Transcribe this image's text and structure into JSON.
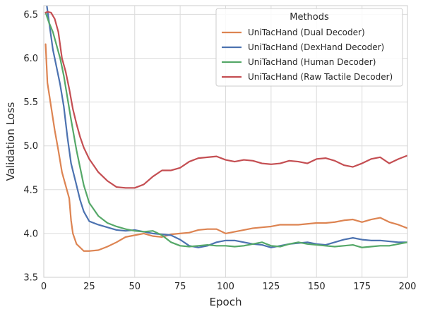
{
  "chart_data": {
    "type": "line",
    "xlabel": "Epoch",
    "ylabel": "Validation Loss",
    "xlim": [
      0,
      200
    ],
    "ylim": [
      3.5,
      6.6
    ],
    "xticks": [
      0,
      25,
      50,
      75,
      100,
      125,
      150,
      175,
      200
    ],
    "yticks": [
      3.5,
      4.0,
      4.5,
      5.0,
      5.5,
      6.0,
      6.5
    ],
    "ytick_labels": [
      "3.5",
      "4.0",
      "4.5",
      "5.0",
      "5.5",
      "6.0",
      "6.5"
    ],
    "grid": true,
    "legend": {
      "title": "Methods",
      "position": "top-right"
    },
    "series": [
      {
        "name": "UniTacHand (Dual Decoder)",
        "color": "#dd8452",
        "points": [
          [
            1,
            6.16
          ],
          [
            2,
            5.72
          ],
          [
            4,
            5.45
          ],
          [
            6,
            5.18
          ],
          [
            8,
            4.95
          ],
          [
            10,
            4.7
          ],
          [
            12,
            4.55
          ],
          [
            14,
            4.4
          ],
          [
            15,
            4.15
          ],
          [
            16,
            4.0
          ],
          [
            18,
            3.88
          ],
          [
            20,
            3.84
          ],
          [
            22,
            3.8
          ],
          [
            25,
            3.8
          ],
          [
            30,
            3.81
          ],
          [
            35,
            3.85
          ],
          [
            40,
            3.9
          ],
          [
            45,
            3.96
          ],
          [
            50,
            3.98
          ],
          [
            55,
            4.0
          ],
          [
            60,
            3.97
          ],
          [
            65,
            3.96
          ],
          [
            70,
            3.99
          ],
          [
            75,
            4.0
          ],
          [
            80,
            4.01
          ],
          [
            85,
            4.04
          ],
          [
            90,
            4.05
          ],
          [
            95,
            4.05
          ],
          [
            100,
            4.0
          ],
          [
            105,
            4.02
          ],
          [
            110,
            4.04
          ],
          [
            115,
            4.06
          ],
          [
            120,
            4.07
          ],
          [
            125,
            4.08
          ],
          [
            130,
            4.1
          ],
          [
            135,
            4.1
          ],
          [
            140,
            4.1
          ],
          [
            145,
            4.11
          ],
          [
            150,
            4.12
          ],
          [
            155,
            4.12
          ],
          [
            160,
            4.13
          ],
          [
            165,
            4.15
          ],
          [
            170,
            4.16
          ],
          [
            175,
            4.13
          ],
          [
            180,
            4.16
          ],
          [
            185,
            4.18
          ],
          [
            190,
            4.13
          ],
          [
            195,
            4.1
          ],
          [
            200,
            4.06
          ]
        ]
      },
      {
        "name": "UniTacHand (DexHand Decoder)",
        "color": "#4c72b0",
        "points": [
          [
            1,
            6.7
          ],
          [
            3,
            6.4
          ],
          [
            5,
            6.1
          ],
          [
            7,
            5.9
          ],
          [
            9,
            5.7
          ],
          [
            11,
            5.45
          ],
          [
            13,
            5.1
          ],
          [
            15,
            4.8
          ],
          [
            18,
            4.55
          ],
          [
            20,
            4.38
          ],
          [
            22,
            4.25
          ],
          [
            25,
            4.14
          ],
          [
            30,
            4.1
          ],
          [
            35,
            4.07
          ],
          [
            40,
            4.04
          ],
          [
            45,
            4.03
          ],
          [
            50,
            4.04
          ],
          [
            55,
            4.02
          ],
          [
            60,
            4.0
          ],
          [
            65,
            3.99
          ],
          [
            70,
            3.98
          ],
          [
            75,
            3.93
          ],
          [
            80,
            3.86
          ],
          [
            85,
            3.84
          ],
          [
            90,
            3.86
          ],
          [
            95,
            3.9
          ],
          [
            100,
            3.92
          ],
          [
            105,
            3.92
          ],
          [
            110,
            3.9
          ],
          [
            115,
            3.88
          ],
          [
            120,
            3.87
          ],
          [
            125,
            3.84
          ],
          [
            130,
            3.86
          ],
          [
            135,
            3.88
          ],
          [
            140,
            3.89
          ],
          [
            145,
            3.9
          ],
          [
            150,
            3.88
          ],
          [
            155,
            3.87
          ],
          [
            160,
            3.9
          ],
          [
            165,
            3.93
          ],
          [
            170,
            3.95
          ],
          [
            175,
            3.93
          ],
          [
            180,
            3.92
          ],
          [
            185,
            3.92
          ],
          [
            190,
            3.91
          ],
          [
            195,
            3.9
          ],
          [
            200,
            3.9
          ]
        ]
      },
      {
        "name": "UniTacHand (Human Decoder)",
        "color": "#55a868",
        "points": [
          [
            1,
            6.52
          ],
          [
            3,
            6.4
          ],
          [
            5,
            6.3
          ],
          [
            7,
            6.15
          ],
          [
            9,
            6.0
          ],
          [
            11,
            5.8
          ],
          [
            13,
            5.55
          ],
          [
            15,
            5.3
          ],
          [
            18,
            4.95
          ],
          [
            20,
            4.75
          ],
          [
            22,
            4.55
          ],
          [
            25,
            4.35
          ],
          [
            30,
            4.2
          ],
          [
            35,
            4.12
          ],
          [
            40,
            4.08
          ],
          [
            45,
            4.05
          ],
          [
            50,
            4.03
          ],
          [
            55,
            4.02
          ],
          [
            60,
            4.03
          ],
          [
            65,
            3.98
          ],
          [
            70,
            3.9
          ],
          [
            75,
            3.86
          ],
          [
            80,
            3.85
          ],
          [
            85,
            3.86
          ],
          [
            90,
            3.87
          ],
          [
            95,
            3.86
          ],
          [
            100,
            3.86
          ],
          [
            105,
            3.85
          ],
          [
            110,
            3.86
          ],
          [
            115,
            3.88
          ],
          [
            120,
            3.9
          ],
          [
            125,
            3.86
          ],
          [
            130,
            3.85
          ],
          [
            135,
            3.88
          ],
          [
            140,
            3.9
          ],
          [
            145,
            3.88
          ],
          [
            150,
            3.87
          ],
          [
            155,
            3.86
          ],
          [
            160,
            3.85
          ],
          [
            165,
            3.86
          ],
          [
            170,
            3.87
          ],
          [
            175,
            3.84
          ],
          [
            180,
            3.85
          ],
          [
            185,
            3.86
          ],
          [
            190,
            3.86
          ],
          [
            195,
            3.88
          ],
          [
            200,
            3.9
          ]
        ]
      },
      {
        "name": "UniTacHand (Raw Tactile Decoder)",
        "color": "#c44e52",
        "points": [
          [
            1,
            6.52
          ],
          [
            2,
            6.53
          ],
          [
            4,
            6.52
          ],
          [
            6,
            6.45
          ],
          [
            8,
            6.3
          ],
          [
            10,
            6.0
          ],
          [
            12,
            5.85
          ],
          [
            14,
            5.65
          ],
          [
            16,
            5.42
          ],
          [
            18,
            5.25
          ],
          [
            20,
            5.1
          ],
          [
            22,
            4.98
          ],
          [
            25,
            4.85
          ],
          [
            30,
            4.7
          ],
          [
            35,
            4.6
          ],
          [
            40,
            4.53
          ],
          [
            45,
            4.52
          ],
          [
            50,
            4.52
          ],
          [
            55,
            4.56
          ],
          [
            60,
            4.65
          ],
          [
            65,
            4.72
          ],
          [
            70,
            4.72
          ],
          [
            75,
            4.75
          ],
          [
            80,
            4.82
          ],
          [
            85,
            4.86
          ],
          [
            90,
            4.87
          ],
          [
            95,
            4.88
          ],
          [
            100,
            4.84
          ],
          [
            105,
            4.82
          ],
          [
            110,
            4.84
          ],
          [
            115,
            4.83
          ],
          [
            120,
            4.8
          ],
          [
            125,
            4.79
          ],
          [
            130,
            4.8
          ],
          [
            135,
            4.83
          ],
          [
            140,
            4.82
          ],
          [
            145,
            4.8
          ],
          [
            150,
            4.85
          ],
          [
            155,
            4.86
          ],
          [
            160,
            4.83
          ],
          [
            165,
            4.78
          ],
          [
            170,
            4.76
          ],
          [
            175,
            4.8
          ],
          [
            180,
            4.85
          ],
          [
            185,
            4.87
          ],
          [
            190,
            4.8
          ],
          [
            195,
            4.85
          ],
          [
            200,
            4.89
          ]
        ]
      }
    ]
  }
}
